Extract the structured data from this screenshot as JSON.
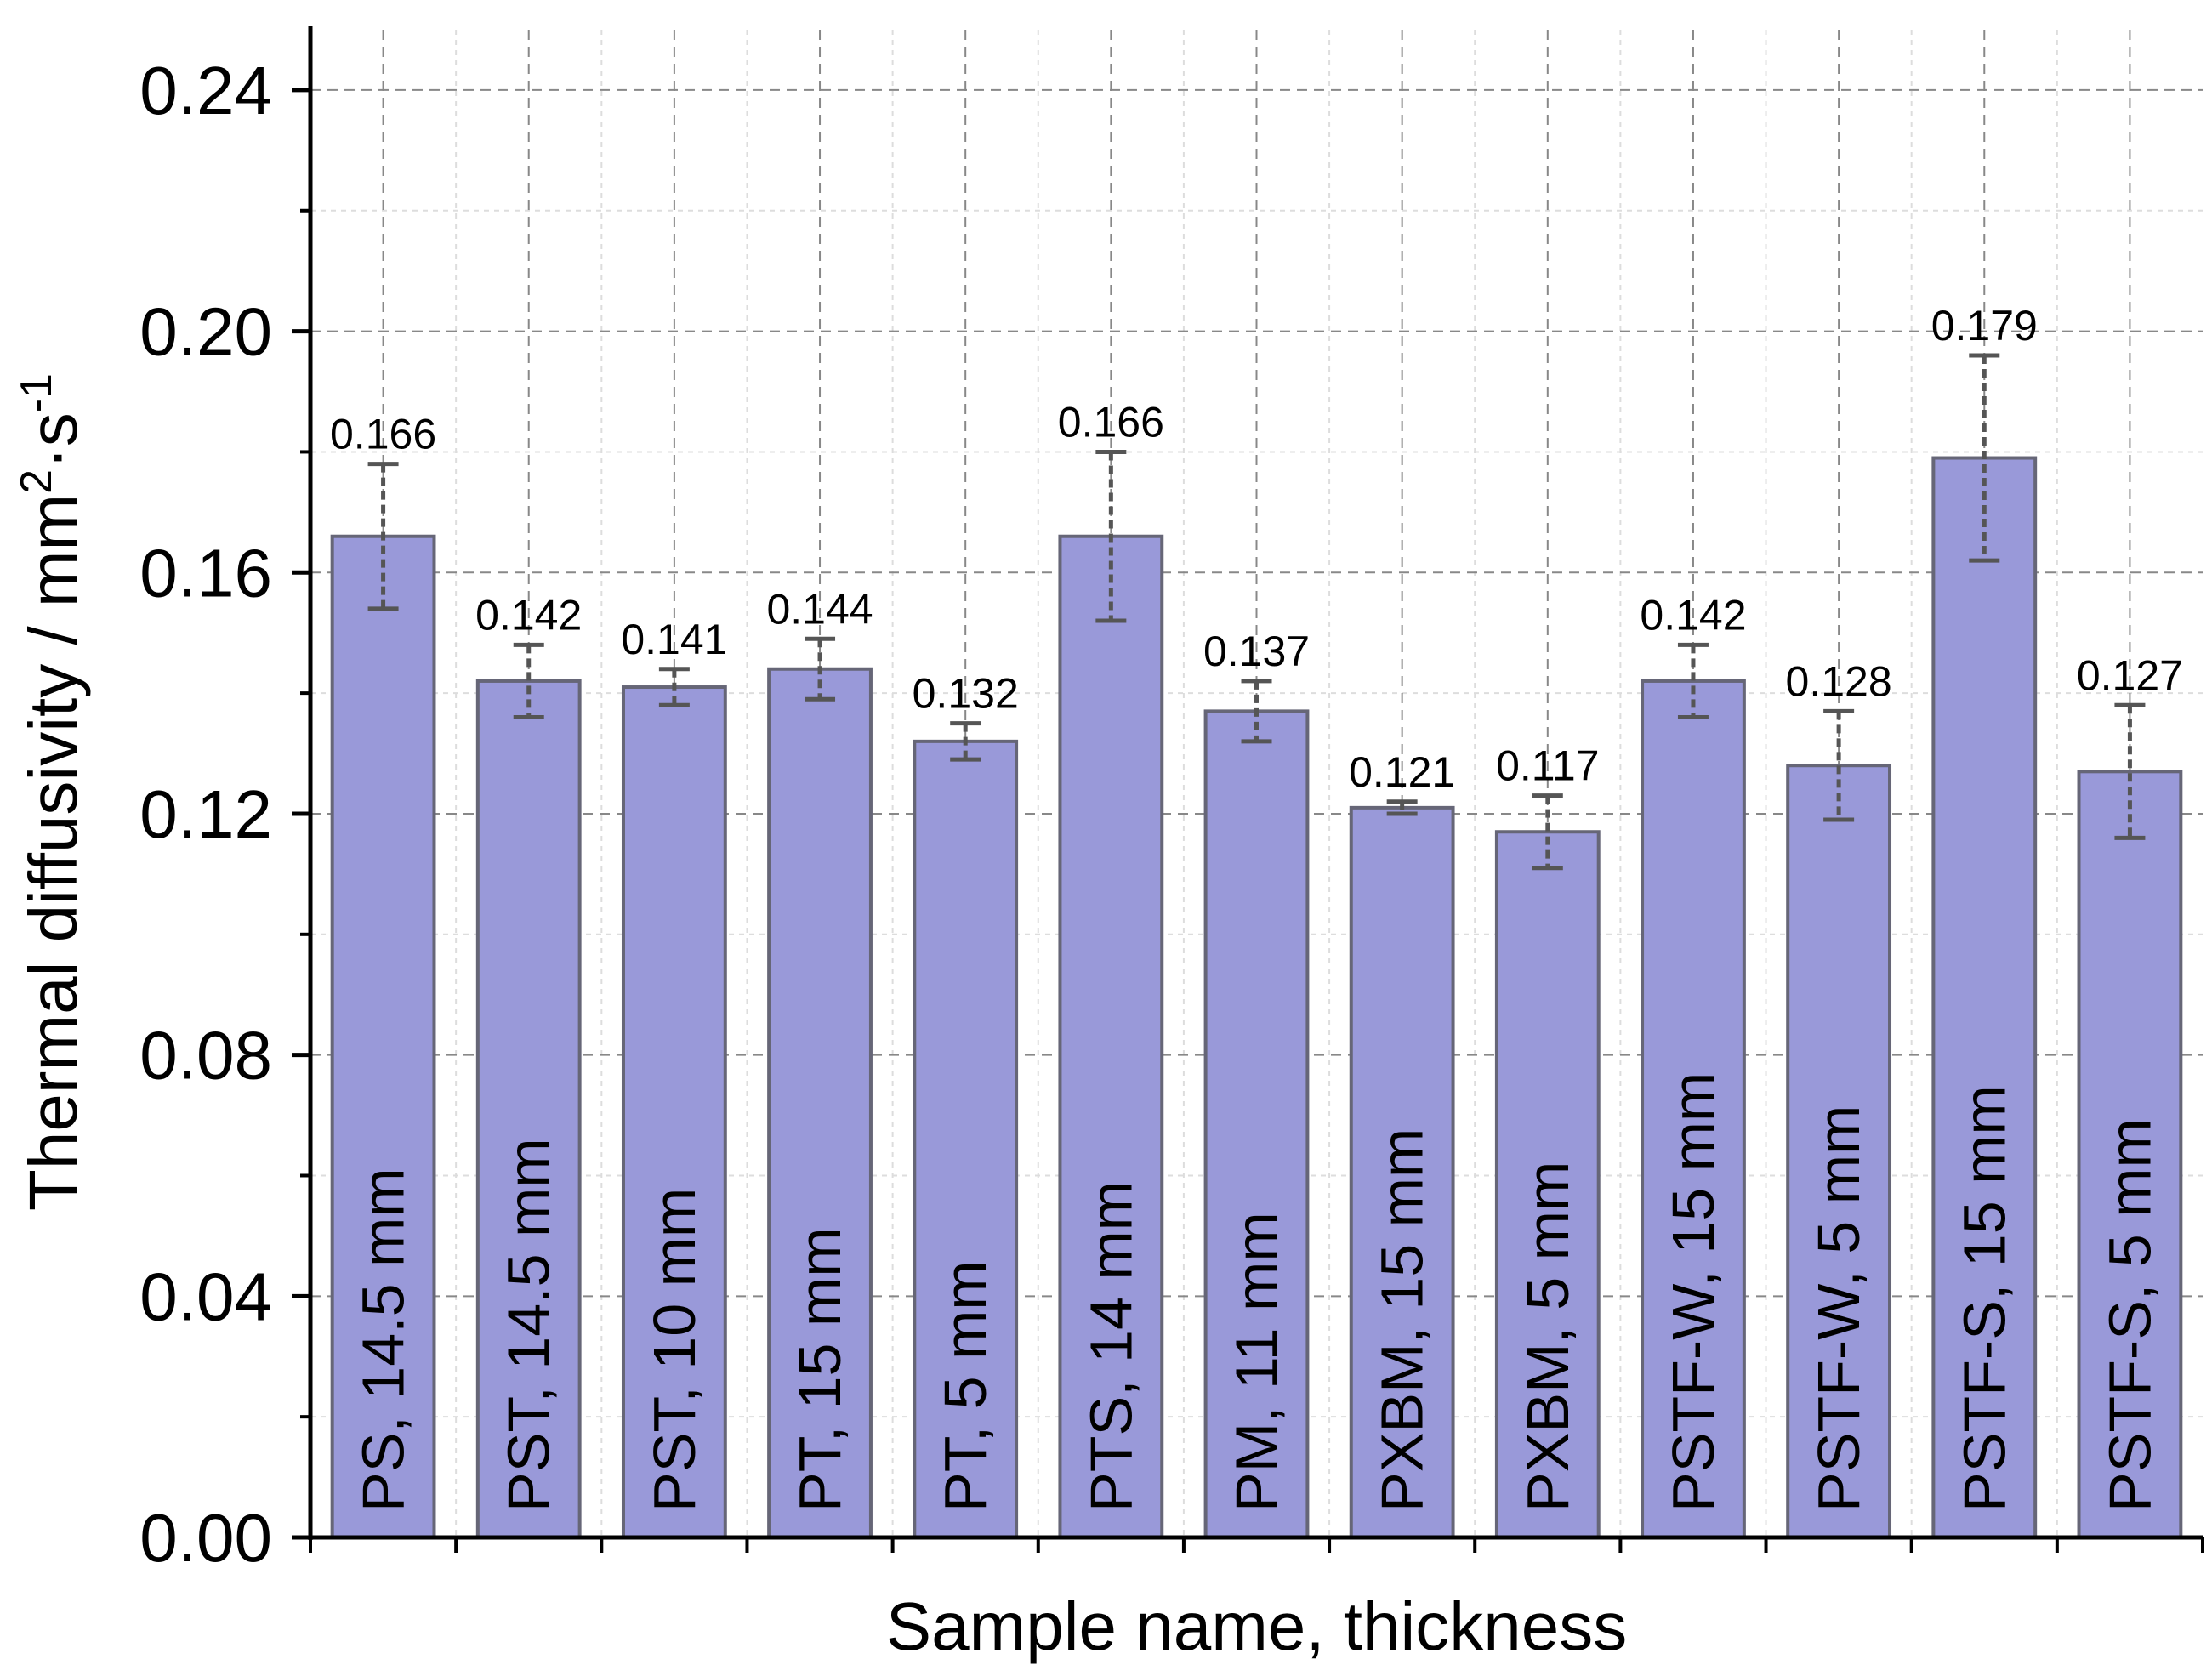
{
  "chart_data": {
    "type": "bar",
    "title": "",
    "xlabel": "Sample name, thickness",
    "ylabel": {
      "text": "Thermal diffusivity / mm",
      "sup1": "2",
      "mid": "·s",
      "sup2": "-1"
    },
    "ylim": [
      0,
      0.25
    ],
    "yticks": [
      "0.00",
      "0.04",
      "0.08",
      "0.12",
      "0.16",
      "0.20",
      "0.24"
    ],
    "ytick_values": [
      0,
      0.04,
      0.08,
      0.12,
      0.16,
      0.2,
      0.24
    ],
    "grid": true,
    "bar_color": "#9999d9",
    "bar_edge_color": "#666677",
    "categories": [
      "PS, 14.5 mm",
      "PST, 14.5 mm",
      "PST, 10 mm",
      "PT, 15 mm",
      "PT, 5 mm",
      "PTS, 14 mm",
      "PM, 11 mm",
      "PXBM, 15 mm",
      "PXBM, 5 mm",
      "PSTF-W, 15 mm",
      "PSTF-W, 5 mm",
      "PSTF-S, 15 mm",
      "PSTF-S, 5 mm"
    ],
    "values": [
      0.166,
      0.142,
      0.141,
      0.144,
      0.132,
      0.166,
      0.137,
      0.121,
      0.117,
      0.142,
      0.128,
      0.179,
      0.127
    ],
    "value_labels": [
      "0.166",
      "0.142",
      "0.141",
      "0.144",
      "0.132",
      "0.166",
      "0.137",
      "0.121",
      "0.117",
      "0.142",
      "0.128",
      "0.179",
      "0.127"
    ],
    "errors": [
      0.012,
      0.006,
      0.003,
      0.005,
      0.003,
      0.014,
      0.005,
      0.001,
      0.006,
      0.006,
      0.009,
      0.017,
      0.011
    ]
  }
}
